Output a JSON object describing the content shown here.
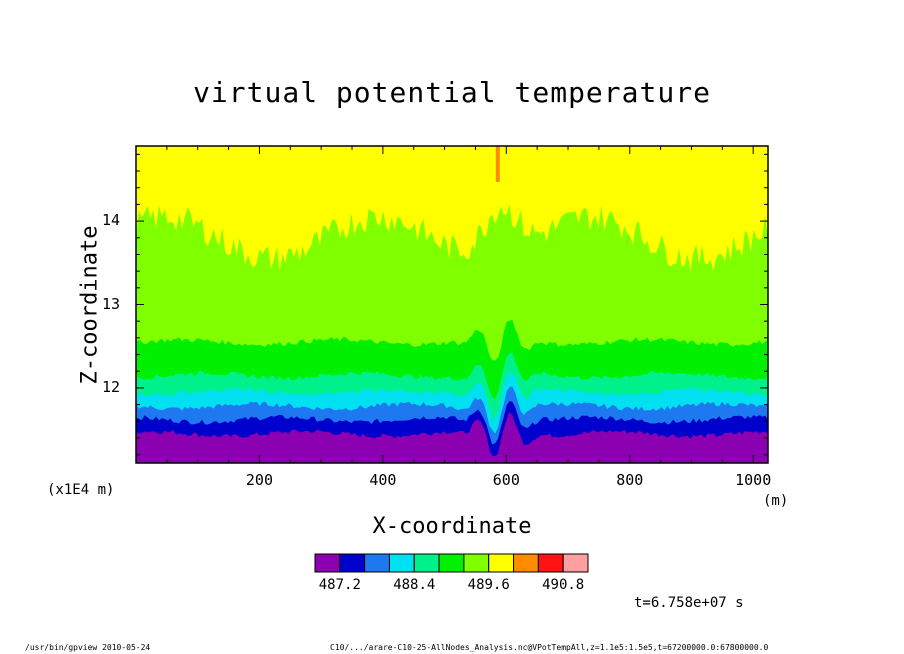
{
  "chart_data": {
    "type": "heatmap",
    "title": "virtual potential temperature",
    "xlabel": "X-coordinate",
    "ylabel": "Z-coordinate",
    "x_unit": "(m)",
    "y_unit": "(x1E4 m)",
    "xlim": [
      0,
      1024
    ],
    "ylim": [
      11.1,
      14.9
    ],
    "x_ticks": [
      200,
      400,
      600,
      800,
      1000
    ],
    "y_ticks": [
      12,
      13,
      14
    ],
    "colorbar": {
      "colors": [
        "#8b00b0",
        "#0000cc",
        "#1e78f0",
        "#00e0f0",
        "#00f08c",
        "#00f000",
        "#80ff00",
        "#ffff00",
        "#ff8c00",
        "#ff1414",
        "#ff9f9f"
      ],
      "levels": [
        487.2,
        487.6,
        488.0,
        488.4,
        488.8,
        489.2,
        489.6,
        490.0,
        490.4,
        490.8
      ],
      "labels": [
        "487.2",
        "488.4",
        "489.6",
        "490.8"
      ]
    },
    "timestamp": "t=6.758e+07 s"
  },
  "footer": {
    "left": "/usr/bin/gpview  2010-05-24",
    "right": "C10/.../arare-C10-25-AllNodes_Analysis.nc@VPotTempAll,z=1.1e5:1.5e5,t=67200000.0:67800000.0"
  }
}
